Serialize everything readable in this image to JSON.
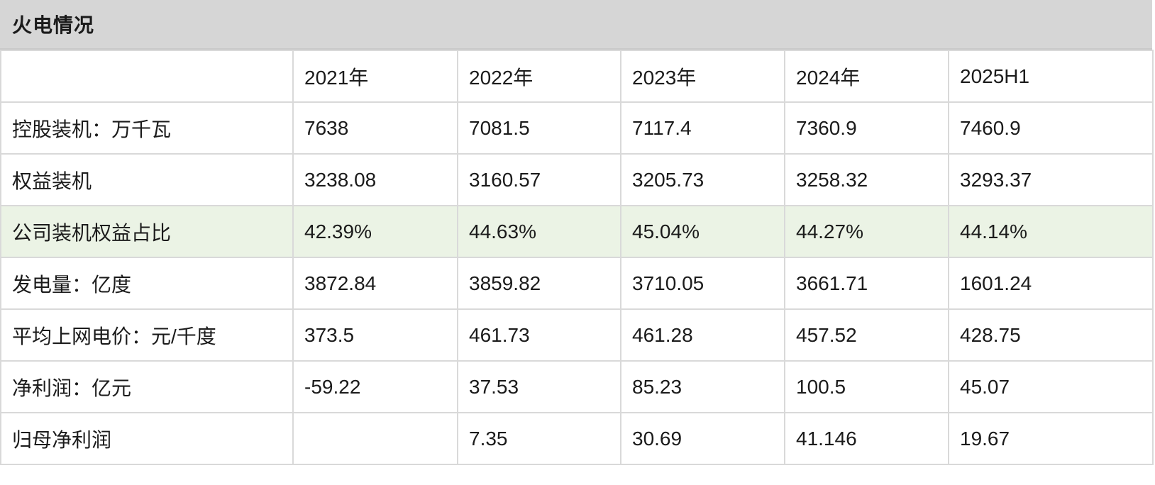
{
  "title_bar": {
    "label": "火电情况"
  },
  "colors": {
    "title_bar_background": "#d6d6d6",
    "grid_border": "#d9d9d9",
    "highlight_row_background": "#ebf3e5",
    "text": "#1b1b1b",
    "cell_background": "#ffffff"
  },
  "chart_data": {
    "type": "table",
    "title": "火电情况",
    "columns": [
      "",
      "2021年",
      "2022年",
      "2023年",
      "2024年",
      "2025H1"
    ],
    "rows": [
      {
        "label": "控股装机：万千瓦",
        "values": [
          "7638",
          "7081.5",
          "7117.4",
          "7360.9",
          "7460.9"
        ],
        "highlight": false
      },
      {
        "label": "权益装机",
        "values": [
          "3238.08",
          "3160.57",
          "3205.73",
          "3258.32",
          "3293.37"
        ],
        "highlight": false
      },
      {
        "label": "公司装机权益占比",
        "values": [
          "42.39%",
          "44.63%",
          "45.04%",
          "44.27%",
          "44.14%"
        ],
        "highlight": true
      },
      {
        "label": "发电量：亿度",
        "values": [
          "3872.84",
          "3859.82",
          "3710.05",
          "3661.71",
          "1601.24"
        ],
        "highlight": false
      },
      {
        "label": "平均上网电价：元/千度",
        "values": [
          "373.5",
          "461.73",
          "461.28",
          "457.52",
          "428.75"
        ],
        "highlight": false
      },
      {
        "label": "净利润：亿元",
        "values": [
          "-59.22",
          "37.53",
          "85.23",
          "100.5",
          "45.07"
        ],
        "highlight": false
      },
      {
        "label": "归母净利润",
        "values": [
          "",
          "7.35",
          "30.69",
          "41.146",
          "19.67"
        ],
        "highlight": false
      }
    ]
  }
}
